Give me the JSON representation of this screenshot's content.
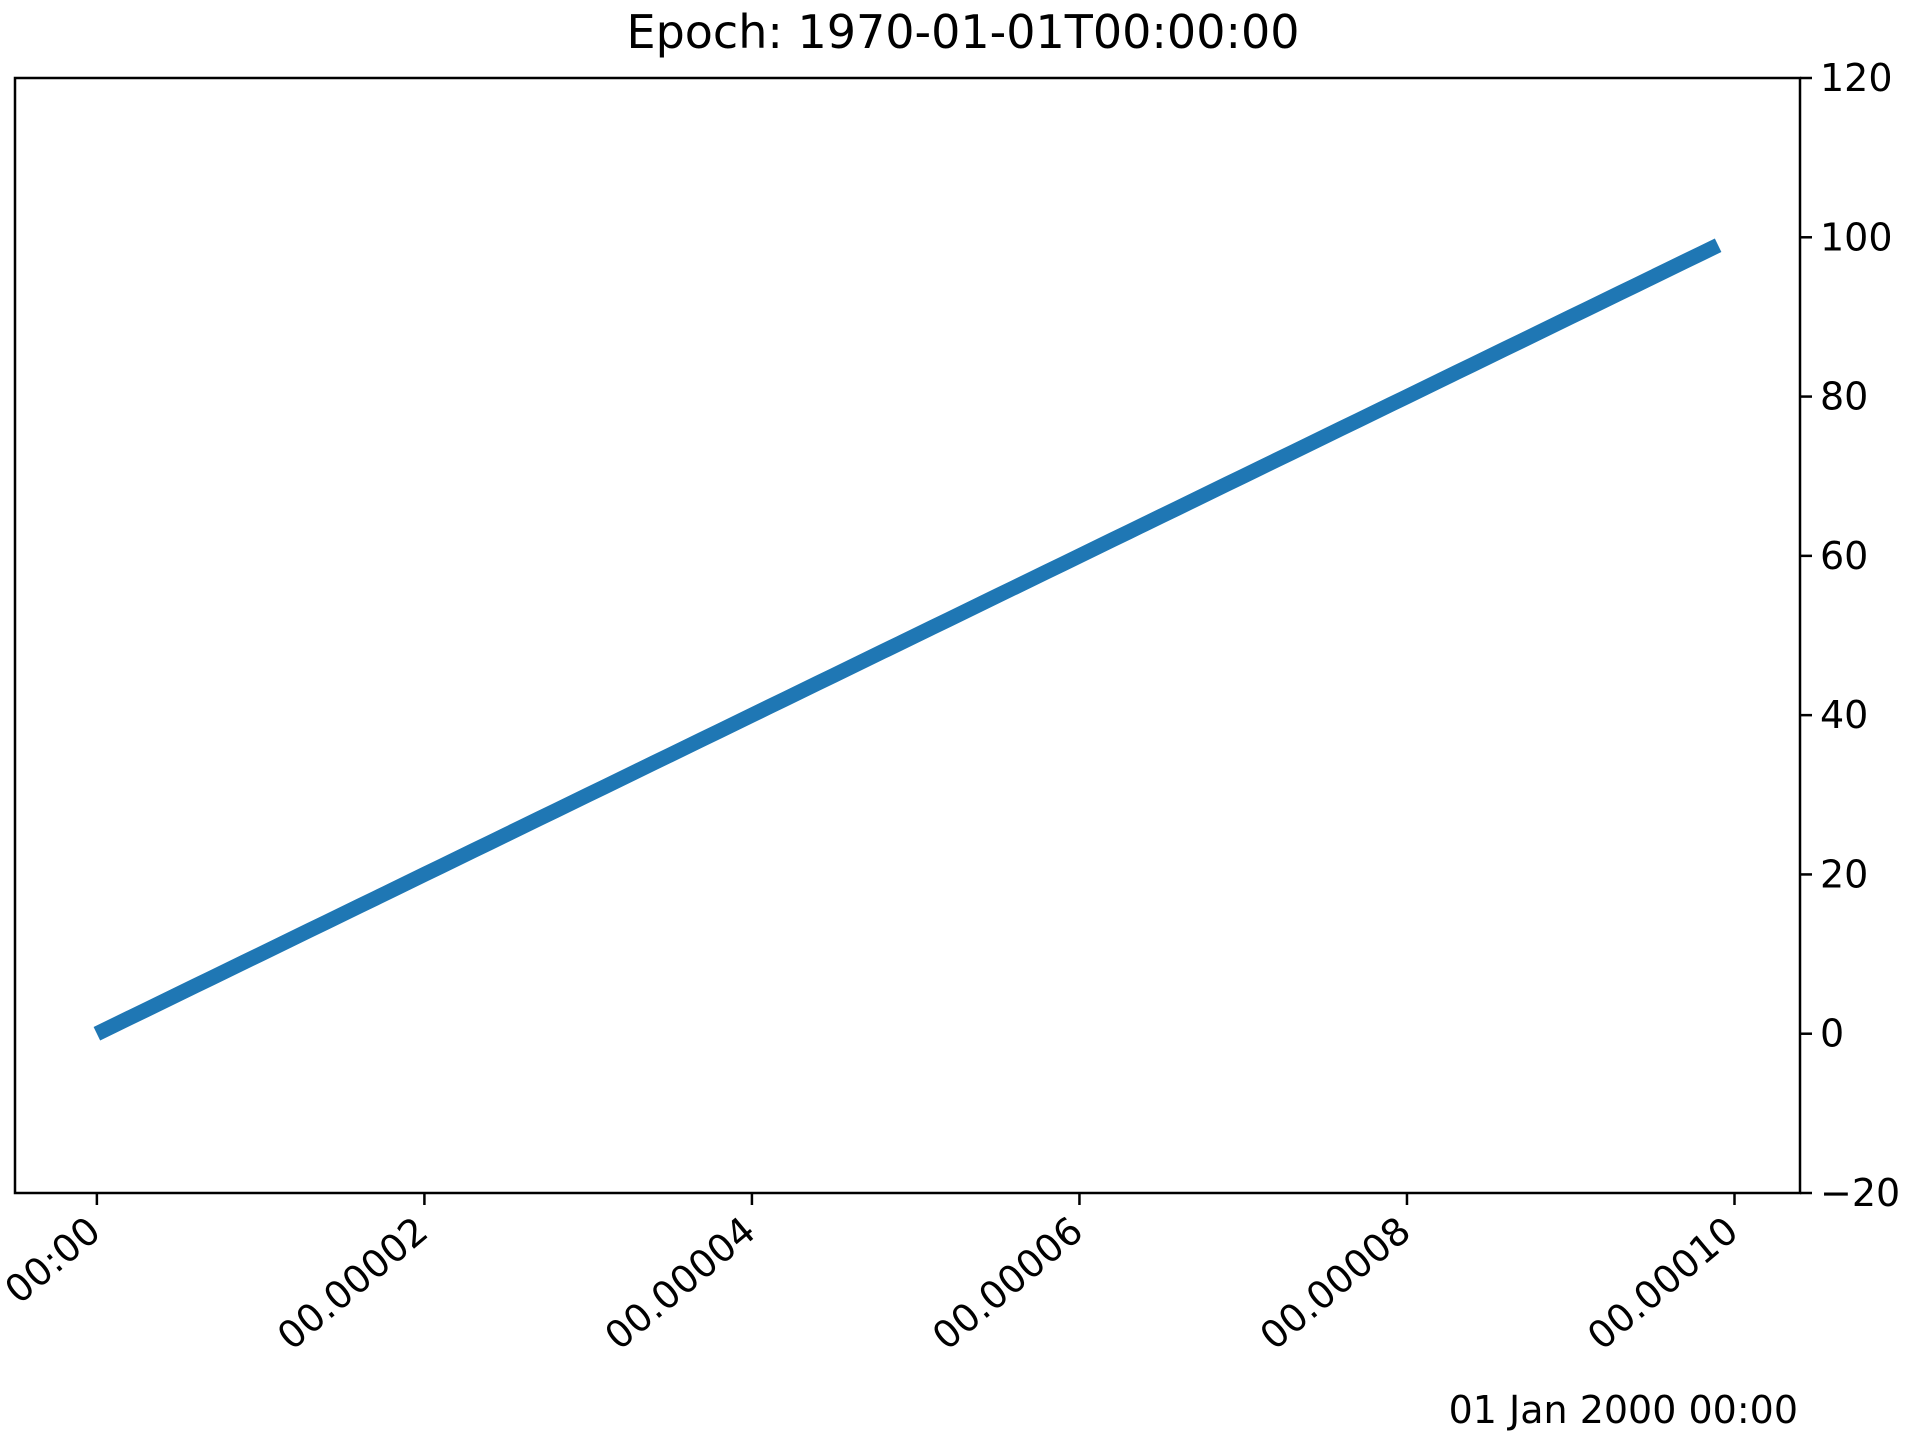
{
  "chart_data": {
    "type": "line",
    "title": "Epoch: 1970-01-01T00:00:00",
    "xlabel": "",
    "ylabel": "",
    "x_offset_label": "01 Jan 2000 00:00",
    "x_axis_kind": "date",
    "x_unit": "seconds after 01 Jan 2000 00:00",
    "x_tick_values": [
      0,
      2e-05,
      4e-05,
      6e-05,
      8e-05,
      0.0001
    ],
    "x_tick_labels": [
      "00:00",
      "00.00002",
      "00.00004",
      "00.00006",
      "00.00008",
      "00.00010"
    ],
    "xlim": [
      -5e-06,
      0.000104
    ],
    "y_tick_values": [
      -20,
      0,
      20,
      40,
      60,
      80,
      100,
      120
    ],
    "y_tick_labels": [
      "−20",
      "0",
      "20",
      "40",
      "60",
      "80",
      "100",
      "120"
    ],
    "ylim": [
      -20,
      120
    ],
    "y_axis_side": "right",
    "grid": false,
    "series": [
      {
        "color": "#1f77b4",
        "x": [
          0,
          1e-06,
          2e-06,
          3e-06,
          4e-06,
          5e-06,
          6e-06,
          7e-06,
          8e-06,
          9e-06,
          1e-05,
          1.1e-05,
          1.2e-05,
          1.3e-05,
          1.4e-05,
          1.5e-05,
          1.6e-05,
          1.7e-05,
          1.8e-05,
          1.9e-05,
          2e-05,
          2.1e-05,
          2.2e-05,
          2.3e-05,
          2.4e-05,
          2.5e-05,
          2.6e-05,
          2.7e-05,
          2.8e-05,
          2.9e-05,
          3e-05,
          3.1e-05,
          3.2e-05,
          3.3e-05,
          3.4e-05,
          3.5e-05,
          3.6e-05,
          3.7e-05,
          3.8e-05,
          3.9e-05,
          4e-05,
          4.1e-05,
          4.2e-05,
          4.3e-05,
          4.4e-05,
          4.5e-05,
          4.6e-05,
          4.7e-05,
          4.8e-05,
          4.9e-05,
          5e-05,
          5.1e-05,
          5.2e-05,
          5.3e-05,
          5.4e-05,
          5.5e-05,
          5.6e-05,
          5.7e-05,
          5.8e-05,
          5.9e-05,
          6e-05,
          6.1e-05,
          6.2e-05,
          6.3e-05,
          6.4e-05,
          6.5e-05,
          6.6e-05,
          6.7e-05,
          6.8e-05,
          6.9e-05,
          7e-05,
          7.1e-05,
          7.2e-05,
          7.3e-05,
          7.4e-05,
          7.5e-05,
          7.6e-05,
          7.7e-05,
          7.8e-05,
          7.9e-05,
          8e-05,
          8.1e-05,
          8.2e-05,
          8.3e-05,
          8.4e-05,
          8.5e-05,
          8.6e-05,
          8.7e-05,
          8.8e-05,
          8.9e-05,
          9e-05,
          9.1e-05,
          9.2e-05,
          9.3e-05,
          9.4e-05,
          9.5e-05,
          9.6e-05,
          9.7e-05,
          9.8e-05,
          9.9e-05
        ],
        "y": [
          0,
          1,
          2,
          3,
          4,
          5,
          6,
          7,
          8,
          9,
          10,
          11,
          12,
          13,
          14,
          15,
          16,
          17,
          18,
          19,
          20,
          21,
          22,
          23,
          24,
          25,
          26,
          27,
          28,
          29,
          30,
          31,
          32,
          33,
          34,
          35,
          36,
          37,
          38,
          39,
          40,
          41,
          42,
          43,
          44,
          45,
          46,
          47,
          48,
          49,
          50,
          51,
          52,
          53,
          54,
          55,
          56,
          57,
          58,
          59,
          60,
          61,
          62,
          63,
          64,
          65,
          66,
          67,
          68,
          69,
          70,
          71,
          72,
          73,
          74,
          75,
          76,
          77,
          78,
          79,
          80,
          81,
          82,
          83,
          84,
          85,
          86,
          87,
          88,
          89,
          90,
          91,
          92,
          93,
          94,
          95,
          96,
          97,
          98,
          99
        ]
      }
    ]
  }
}
